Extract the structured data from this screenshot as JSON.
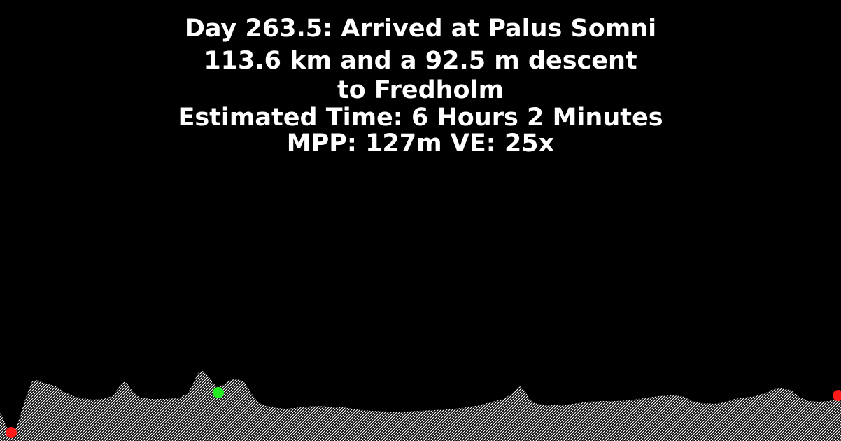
{
  "header": {
    "line1": "Day 263.5: Arrived at Palus Somni",
    "line2": "113.6 km and a 92.5 m descent",
    "line3": "to Fredholm",
    "line4": "Estimated Time: 6 Hours 2 Minutes",
    "line5": "MPP: 127m VE: 25x"
  },
  "colors": {
    "background": "#000000",
    "text": "#ffffff",
    "terrain_fill": "#ffffff",
    "start_marker": "#ff1a1a",
    "current_marker": "#22ee22",
    "end_marker": "#ff1a1a"
  },
  "profile": {
    "distance_km": 113.6,
    "descent_m": 92.5,
    "current_position_fraction": 0.26
  }
}
